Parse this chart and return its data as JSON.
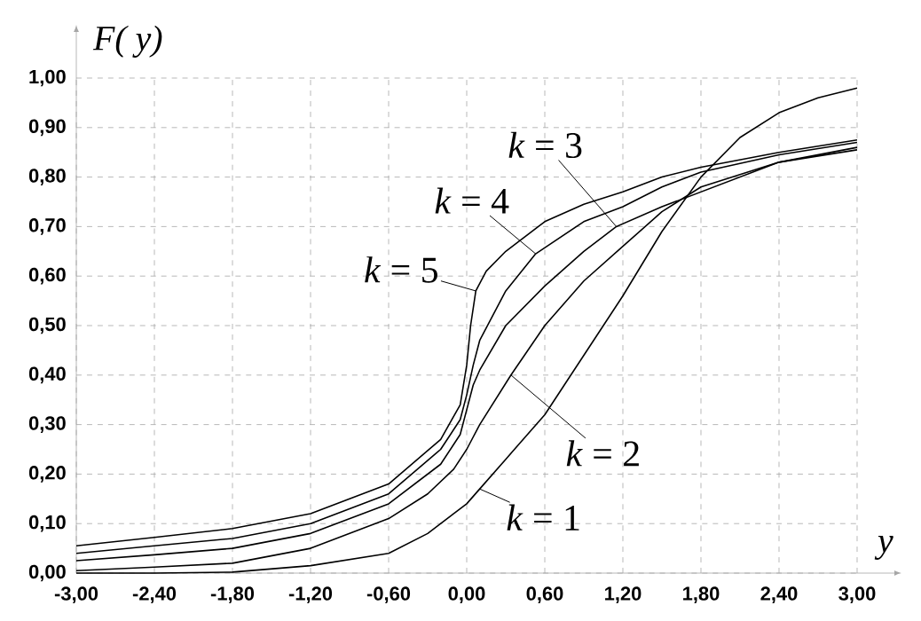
{
  "chart_data": {
    "type": "line",
    "xlabel": "y",
    "ylabel": "F( y)",
    "xlim": [
      -3,
      3
    ],
    "ylim": [
      0,
      1
    ],
    "xticks": [
      {
        "value": -3,
        "label": "-3,00"
      },
      {
        "value": -2.4,
        "label": "-2,40"
      },
      {
        "value": -1.8,
        "label": "-1,80"
      },
      {
        "value": -1.2,
        "label": "-1,20"
      },
      {
        "value": -0.6,
        "label": "-0,60"
      },
      {
        "value": 0,
        "label": "0,00"
      },
      {
        "value": 0.6,
        "label": "0,60"
      },
      {
        "value": 1.2,
        "label": "1,20"
      },
      {
        "value": 1.8,
        "label": "1,80"
      },
      {
        "value": 2.4,
        "label": "2,40"
      },
      {
        "value": 3,
        "label": "3,00"
      }
    ],
    "yticks": [
      {
        "value": 0,
        "label": "0,00"
      },
      {
        "value": 0.1,
        "label": "0,10"
      },
      {
        "value": 0.2,
        "label": "0,20"
      },
      {
        "value": 0.3,
        "label": "0,30"
      },
      {
        "value": 0.4,
        "label": "0,40"
      },
      {
        "value": 0.5,
        "label": "0,50"
      },
      {
        "value": 0.6,
        "label": "0,60"
      },
      {
        "value": 0.7,
        "label": "0,70"
      },
      {
        "value": 0.8,
        "label": "0,80"
      },
      {
        "value": 0.9,
        "label": "0,90"
      },
      {
        "value": 1,
        "label": "1,00"
      }
    ],
    "grid": true,
    "line_style": "solid",
    "marker": "none",
    "series": [
      {
        "color": "#000000",
        "x": [
          -3,
          -2.4,
          -1.8,
          -1.2,
          -0.6,
          -0.3,
          0,
          0.1,
          0.3,
          0.6,
          0.9,
          1.2,
          1.5,
          1.8,
          2.1,
          2.4,
          2.7,
          3
        ],
        "values": [
          0.0,
          0.0,
          0.002,
          0.015,
          0.04,
          0.08,
          0.14,
          0.17,
          0.23,
          0.32,
          0.44,
          0.56,
          0.69,
          0.8,
          0.88,
          0.93,
          0.96,
          0.98
        ]
      },
      {
        "color": "#000000",
        "x": [
          -3,
          -2.4,
          -1.8,
          -1.2,
          -0.6,
          -0.3,
          -0.1,
          0,
          0.1,
          0.34,
          0.6,
          0.9,
          1.2,
          1.5,
          1.8,
          2.4,
          3
        ],
        "values": [
          0.005,
          0.012,
          0.02,
          0.05,
          0.11,
          0.16,
          0.21,
          0.25,
          0.3,
          0.4,
          0.5,
          0.59,
          0.66,
          0.73,
          0.78,
          0.83,
          0.855
        ]
      },
      {
        "color": "#000000",
        "x": [
          -3,
          -2.4,
          -1.8,
          -1.2,
          -0.6,
          -0.2,
          -0.05,
          0,
          0.05,
          0.1,
          0.3,
          0.6,
          0.9,
          1.15,
          1.5,
          1.8,
          2.4,
          3
        ],
        "values": [
          0.025,
          0.037,
          0.05,
          0.08,
          0.14,
          0.22,
          0.28,
          0.33,
          0.38,
          0.41,
          0.5,
          0.58,
          0.65,
          0.7,
          0.74,
          0.77,
          0.83,
          0.86
        ]
      },
      {
        "color": "#000000",
        "x": [
          -3,
          -2.4,
          -1.8,
          -1.2,
          -0.6,
          -0.2,
          -0.05,
          0,
          0.05,
          0.1,
          0.3,
          0.53,
          0.9,
          1.2,
          1.5,
          1.8,
          2.4,
          3
        ],
        "values": [
          0.04,
          0.055,
          0.07,
          0.1,
          0.16,
          0.25,
          0.31,
          0.36,
          0.42,
          0.47,
          0.57,
          0.645,
          0.71,
          0.74,
          0.78,
          0.81,
          0.845,
          0.87
        ]
      },
      {
        "color": "#000000",
        "x": [
          -3,
          -2.4,
          -1.8,
          -1.2,
          -0.6,
          -0.2,
          -0.05,
          0,
          0.03,
          0.07,
          0.15,
          0.3,
          0.6,
          0.9,
          1.2,
          1.5,
          1.8,
          2.4,
          3
        ],
        "values": [
          0.055,
          0.072,
          0.09,
          0.12,
          0.18,
          0.27,
          0.34,
          0.42,
          0.5,
          0.57,
          0.61,
          0.65,
          0.71,
          0.745,
          0.77,
          0.8,
          0.82,
          0.85,
          0.875
        ]
      }
    ],
    "annotations": [
      {
        "text": "*k* = 1",
        "x": 0.1,
        "y": 0.17
      },
      {
        "text": "*k* = 2",
        "x": 0.34,
        "y": 0.4
      },
      {
        "text": "*k* = 3",
        "x": 1.15,
        "y": 0.7
      },
      {
        "text": "*k* = 4",
        "x": 0.53,
        "y": 0.645
      },
      {
        "text": "*k* = 5",
        "x": 0.07,
        "y": 0.57
      }
    ]
  }
}
